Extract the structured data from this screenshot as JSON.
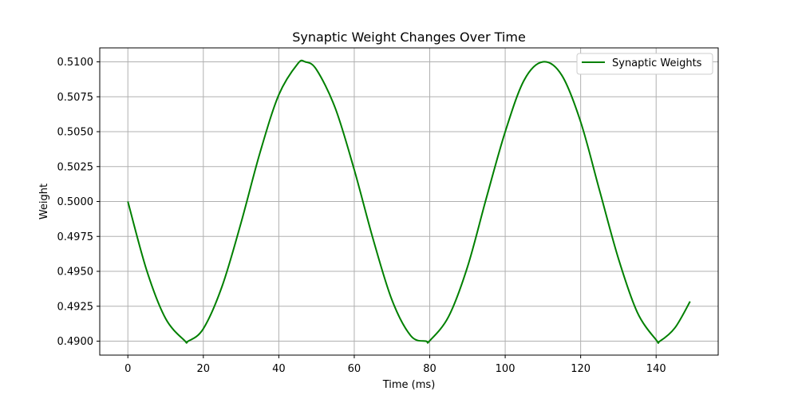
{
  "chart_data": {
    "type": "line",
    "title": "Synaptic Weight Changes Over Time",
    "xlabel": "Time (ms)",
    "ylabel": "Weight",
    "xlim": [
      -7.45,
      156.45
    ],
    "ylim": [
      0.489,
      0.511
    ],
    "xticks": [
      0,
      20,
      40,
      60,
      80,
      100,
      120,
      140
    ],
    "yticks": [
      0.49,
      0.4925,
      0.495,
      0.4975,
      0.5,
      0.5025,
      0.505,
      0.5075,
      0.51
    ],
    "ytick_labels": [
      "0.4900",
      "0.4925",
      "0.4950",
      "0.4975",
      "0.5000",
      "0.5025",
      "0.5050",
      "0.5075",
      "0.5100"
    ],
    "grid": true,
    "legend_position": "top-right",
    "series": [
      {
        "name": "Synaptic Weights",
        "color": "#008000",
        "x": [
          0,
          5,
          10,
          15,
          16,
          20,
          25,
          30,
          35,
          40,
          45,
          47,
          50,
          55,
          60,
          65,
          70,
          75,
          79,
          80,
          85,
          90,
          95,
          100,
          105,
          110,
          115,
          120,
          125,
          130,
          135,
          140,
          141,
          145,
          149
        ],
        "y": [
          0.5,
          0.49506,
          0.49162,
          0.49005,
          0.49,
          0.49089,
          0.49395,
          0.49848,
          0.50348,
          0.50764,
          0.50986,
          0.51,
          0.50944,
          0.50666,
          0.50227,
          0.4973,
          0.49294,
          0.49038,
          0.49,
          0.49003,
          0.49176,
          0.49531,
          0.50024,
          0.50499,
          0.50868,
          0.51,
          0.50904,
          0.5057,
          0.5008,
          0.49592,
          0.49207,
          0.49009,
          0.49,
          0.49096,
          0.49284
        ]
      }
    ]
  }
}
